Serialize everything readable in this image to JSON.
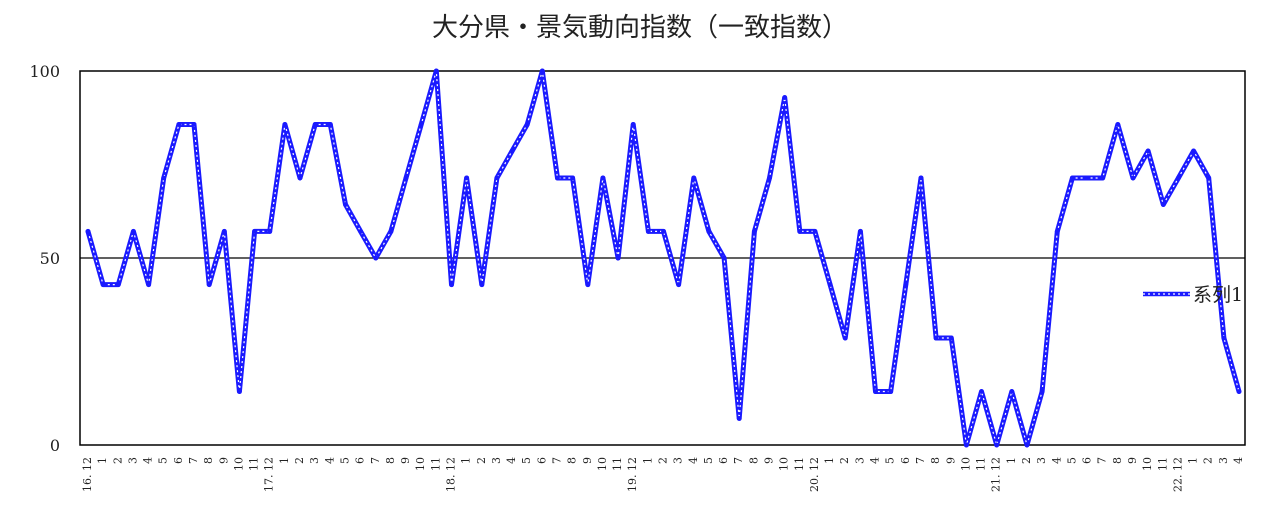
{
  "chart_data": {
    "type": "line",
    "title": "大分県・景気動向指数（一致指数）",
    "xlabel": "",
    "ylabel": "",
    "ylim": [
      0,
      100
    ],
    "yticks": [
      0,
      50,
      100
    ],
    "reference_lines": [
      50
    ],
    "legend": {
      "position": "right",
      "label": "系列1"
    },
    "line_color": "#1a1aff",
    "categories": [
      "16. 12",
      "1",
      "2",
      "3",
      "4",
      "5",
      "6",
      "7",
      "8",
      "9",
      "10",
      "11",
      "17. 12",
      "1",
      "2",
      "3",
      "4",
      "5",
      "6",
      "7",
      "8",
      "9",
      "10",
      "11",
      "18. 12",
      "1",
      "2",
      "3",
      "4",
      "5",
      "6",
      "7",
      "8",
      "9",
      "10",
      "11",
      "19. 12",
      "1",
      "2",
      "3",
      "4",
      "5",
      "6",
      "7",
      "8",
      "9",
      "10",
      "11",
      "20. 12",
      "1",
      "2",
      "3",
      "4",
      "5",
      "6",
      "7",
      "8",
      "9",
      "10",
      "11",
      "21. 12",
      "1",
      "2",
      "3",
      "4",
      "5",
      "6",
      "7",
      "8",
      "9",
      "10",
      "11",
      "22. 12",
      "1",
      "2",
      "3",
      "4"
    ],
    "series": [
      {
        "name": "系列1",
        "values": [
          57.1,
          42.9,
          42.9,
          57.1,
          42.9,
          71.4,
          85.7,
          85.7,
          42.9,
          57.1,
          14.3,
          57.1,
          57.1,
          85.7,
          71.4,
          85.7,
          85.7,
          64.3,
          57.1,
          50,
          57.1,
          71.4,
          85.7,
          100,
          42.9,
          71.4,
          42.9,
          71.4,
          78.6,
          85.7,
          100,
          71.4,
          71.4,
          42.9,
          71.4,
          50,
          85.7,
          57.1,
          57.1,
          42.9,
          71.4,
          57.1,
          50,
          7.1,
          57.1,
          71.4,
          92.9,
          57.1,
          57.1,
          42.9,
          28.6,
          57.1,
          14.3,
          14.3,
          42.9,
          71.4,
          28.6,
          28.6,
          0,
          14.3,
          0,
          14.3,
          0,
          14.3,
          57.1,
          71.4,
          71.4,
          71.4,
          85.7,
          71.4,
          78.6,
          64.3,
          71.4,
          78.6,
          71.4,
          28.6,
          14.3
        ]
      }
    ]
  }
}
